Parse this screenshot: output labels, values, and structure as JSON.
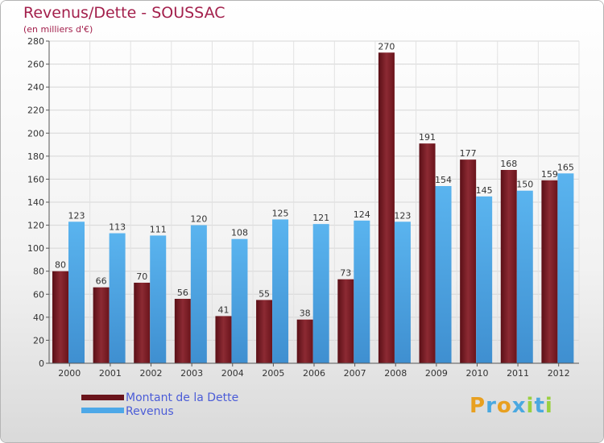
{
  "title": "Revenus/Dette - SOUSSAC",
  "subtitle": "(en milliers d'€)",
  "chart_data": {
    "type": "bar",
    "categories": [
      "2000",
      "2001",
      "2002",
      "2003",
      "2004",
      "2005",
      "2006",
      "2007",
      "2008",
      "2009",
      "2010",
      "2011",
      "2012"
    ],
    "series": [
      {
        "name": "Montant de la Dette",
        "color": "#7a1a22",
        "values": [
          80,
          66,
          70,
          56,
          41,
          55,
          38,
          73,
          270,
          191,
          177,
          168,
          159
        ]
      },
      {
        "name": "Revenus",
        "color": "#4da8e8",
        "values": [
          123,
          113,
          111,
          120,
          108,
          125,
          121,
          124,
          123,
          154,
          145,
          150,
          165
        ]
      }
    ],
    "ylim": [
      0,
      280
    ],
    "ytick_step": 20,
    "grid": true,
    "legend": "bottom-left"
  },
  "legend": {
    "debt_label": "Montant de la Dette",
    "revenue_label": "Revenus"
  },
  "logo": {
    "letters": [
      "P",
      "r",
      "o",
      "x",
      "i",
      "t",
      "i"
    ],
    "colors": [
      "#e8a020",
      "#4aa8e0",
      "#e8a020",
      "#4aa8e0",
      "#9ad040",
      "#4aa8e0",
      "#9ad040"
    ]
  }
}
